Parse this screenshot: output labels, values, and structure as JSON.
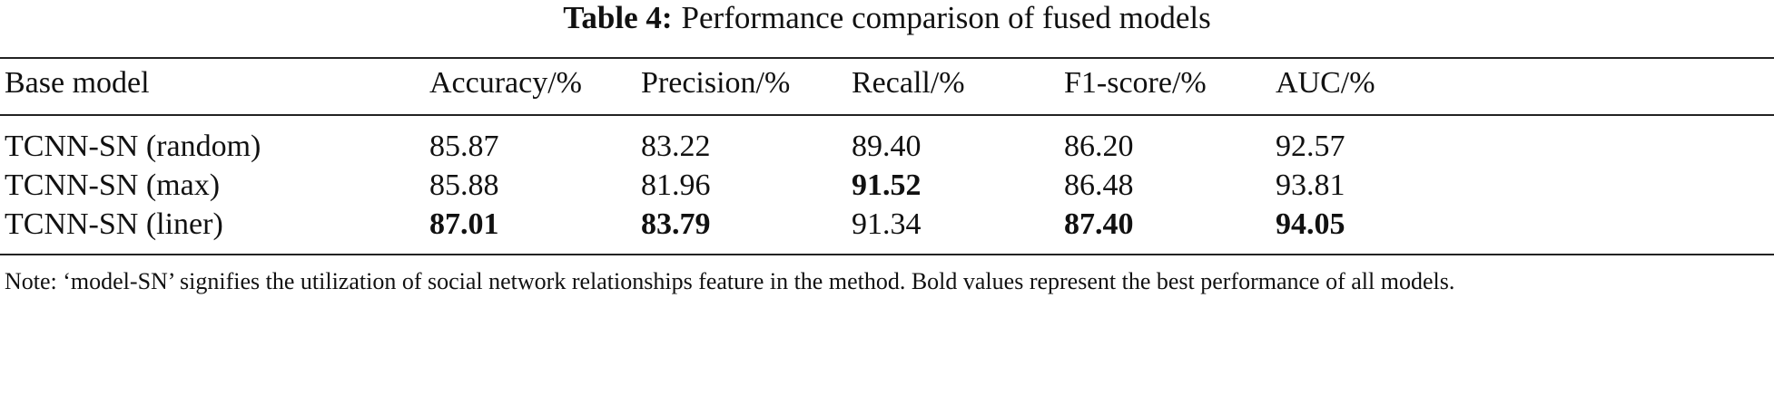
{
  "caption": {
    "label": "Table 4:",
    "text": "Performance comparison of fused models"
  },
  "table": {
    "header": [
      "Base model",
      "Accuracy/%",
      "Precision/%",
      "Recall/%",
      "F1-score/%",
      "AUC/%"
    ],
    "rows": [
      [
        "TCNN-SN (random)",
        "85.87",
        "83.22",
        "89.40",
        "86.20",
        "92.57"
      ],
      [
        "TCNN-SN (max)",
        "85.88",
        "81.96",
        "91.52",
        "86.48",
        "93.81"
      ],
      [
        "TCNN-SN (liner)",
        "87.01",
        "83.79",
        "91.34",
        "87.40",
        "94.05"
      ]
    ]
  },
  "note": "Note: ‘model-SN’ signifies the utilization of social network relationships feature in the method. Bold values represent the best performance of all models."
}
